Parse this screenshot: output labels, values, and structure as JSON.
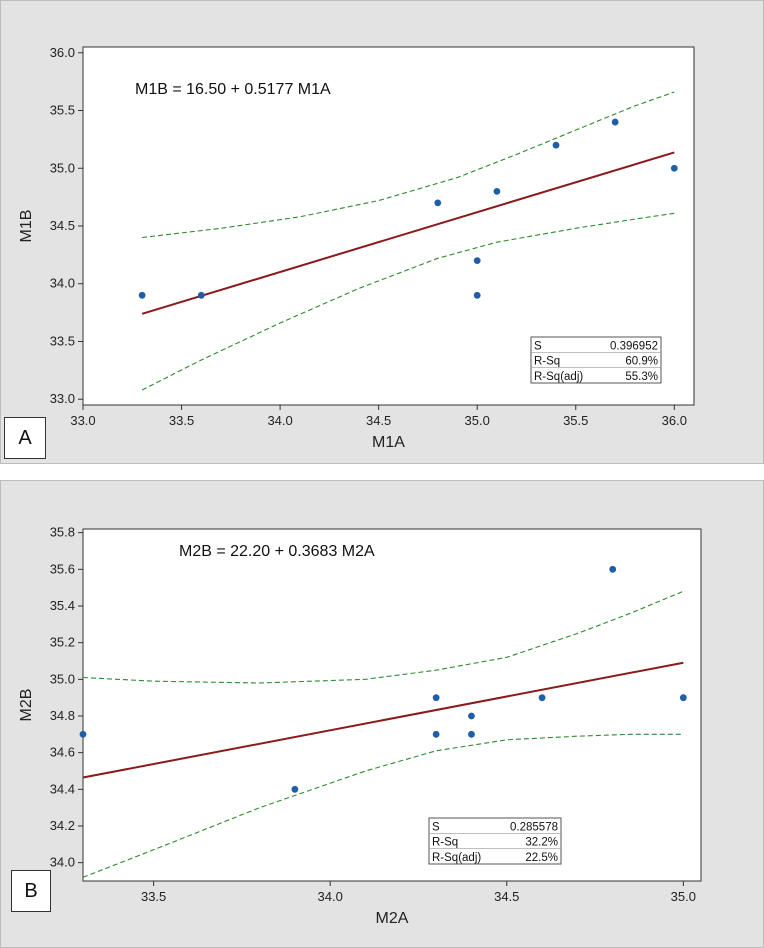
{
  "chart_data": [
    {
      "type": "scatter",
      "panel_label": "A",
      "equation": "M1B = 16.50 + 0.5177 M1A",
      "xlabel": "M1A",
      "ylabel": "M1B",
      "xlim": [
        33.0,
        36.1
      ],
      "ylim": [
        32.95,
        36.05
      ],
      "xticks": [
        "33.0",
        "33.5",
        "34.0",
        "34.5",
        "35.0",
        "35.5",
        "36.0"
      ],
      "yticks": [
        "33.0",
        "33.5",
        "34.0",
        "34.5",
        "35.0",
        "35.5",
        "36.0"
      ],
      "points": [
        {
          "x": 33.3,
          "y": 33.9
        },
        {
          "x": 33.6,
          "y": 33.9
        },
        {
          "x": 34.8,
          "y": 34.7
        },
        {
          "x": 35.0,
          "y": 34.2
        },
        {
          "x": 35.0,
          "y": 33.9
        },
        {
          "x": 35.1,
          "y": 34.8
        },
        {
          "x": 35.4,
          "y": 35.2
        },
        {
          "x": 35.7,
          "y": 35.4
        },
        {
          "x": 36.0,
          "y": 35.0
        }
      ],
      "fit": {
        "intercept": 16.5,
        "slope": 0.5177,
        "x_range": [
          33.3,
          36.0
        ]
      },
      "ci_upper": [
        [
          33.3,
          34.4
        ],
        [
          33.7,
          34.48
        ],
        [
          34.1,
          34.58
        ],
        [
          34.5,
          34.72
        ],
        [
          34.9,
          34.92
        ],
        [
          35.2,
          35.12
        ],
        [
          35.5,
          35.33
        ],
        [
          35.8,
          35.54
        ],
        [
          36.0,
          35.66
        ]
      ],
      "ci_lower": [
        [
          33.3,
          33.08
        ],
        [
          33.6,
          33.34
        ],
        [
          34.0,
          33.66
        ],
        [
          34.4,
          33.96
        ],
        [
          34.8,
          34.22
        ],
        [
          35.1,
          34.36
        ],
        [
          35.5,
          34.48
        ],
        [
          35.8,
          34.56
        ],
        [
          36.0,
          34.61
        ]
      ],
      "stats": [
        {
          "label": "S",
          "value": "0.396952"
        },
        {
          "label": "R-Sq",
          "value": "60.9%"
        },
        {
          "label": "R-Sq(adj)",
          "value": "55.3%"
        }
      ],
      "colors": {
        "points": "#1f5fa8",
        "fit": "#8b1a1a",
        "ci": "#2e8b2e"
      }
    },
    {
      "type": "scatter",
      "panel_label": "B",
      "equation": "M2B = 22.20 + 0.3683 M2A",
      "xlabel": "M2A",
      "ylabel": "M2B",
      "xlim": [
        33.3,
        35.05
      ],
      "ylim": [
        33.9,
        35.82
      ],
      "xticks": [
        "33.5",
        "34.0",
        "34.5",
        "35.0"
      ],
      "yticks": [
        "34.0",
        "34.2",
        "34.4",
        "34.6",
        "34.8",
        "35.0",
        "35.2",
        "35.4",
        "35.6",
        "35.8"
      ],
      "points": [
        {
          "x": 33.3,
          "y": 34.7
        },
        {
          "x": 33.9,
          "y": 34.4
        },
        {
          "x": 34.3,
          "y": 34.9
        },
        {
          "x": 34.3,
          "y": 34.7
        },
        {
          "x": 34.4,
          "y": 34.8
        },
        {
          "x": 34.4,
          "y": 34.7
        },
        {
          "x": 34.6,
          "y": 34.9
        },
        {
          "x": 34.8,
          "y": 35.6
        },
        {
          "x": 35.0,
          "y": 34.9
        }
      ],
      "fit": {
        "intercept": 22.2,
        "slope": 0.3683,
        "x_range": [
          33.3,
          35.0
        ]
      },
      "ci_upper": [
        [
          33.3,
          35.01
        ],
        [
          33.5,
          34.99
        ],
        [
          33.8,
          34.98
        ],
        [
          34.1,
          35.0
        ],
        [
          34.3,
          35.05
        ],
        [
          34.5,
          35.12
        ],
        [
          34.7,
          35.25
        ],
        [
          34.85,
          35.36
        ],
        [
          35.0,
          35.48
        ]
      ],
      "ci_lower": [
        [
          33.3,
          33.92
        ],
        [
          33.5,
          34.07
        ],
        [
          33.8,
          34.3
        ],
        [
          34.1,
          34.5
        ],
        [
          34.3,
          34.61
        ],
        [
          34.5,
          34.67
        ],
        [
          34.7,
          34.69
        ],
        [
          34.85,
          34.7
        ],
        [
          35.0,
          34.7
        ]
      ],
      "stats": [
        {
          "label": "S",
          "value": "0.285578"
        },
        {
          "label": "R-Sq",
          "value": "32.2%"
        },
        {
          "label": "R-Sq(adj)",
          "value": "22.5%"
        }
      ],
      "colors": {
        "points": "#1f5fa8",
        "fit": "#8b1a1a",
        "ci": "#2e8b2e"
      }
    }
  ]
}
